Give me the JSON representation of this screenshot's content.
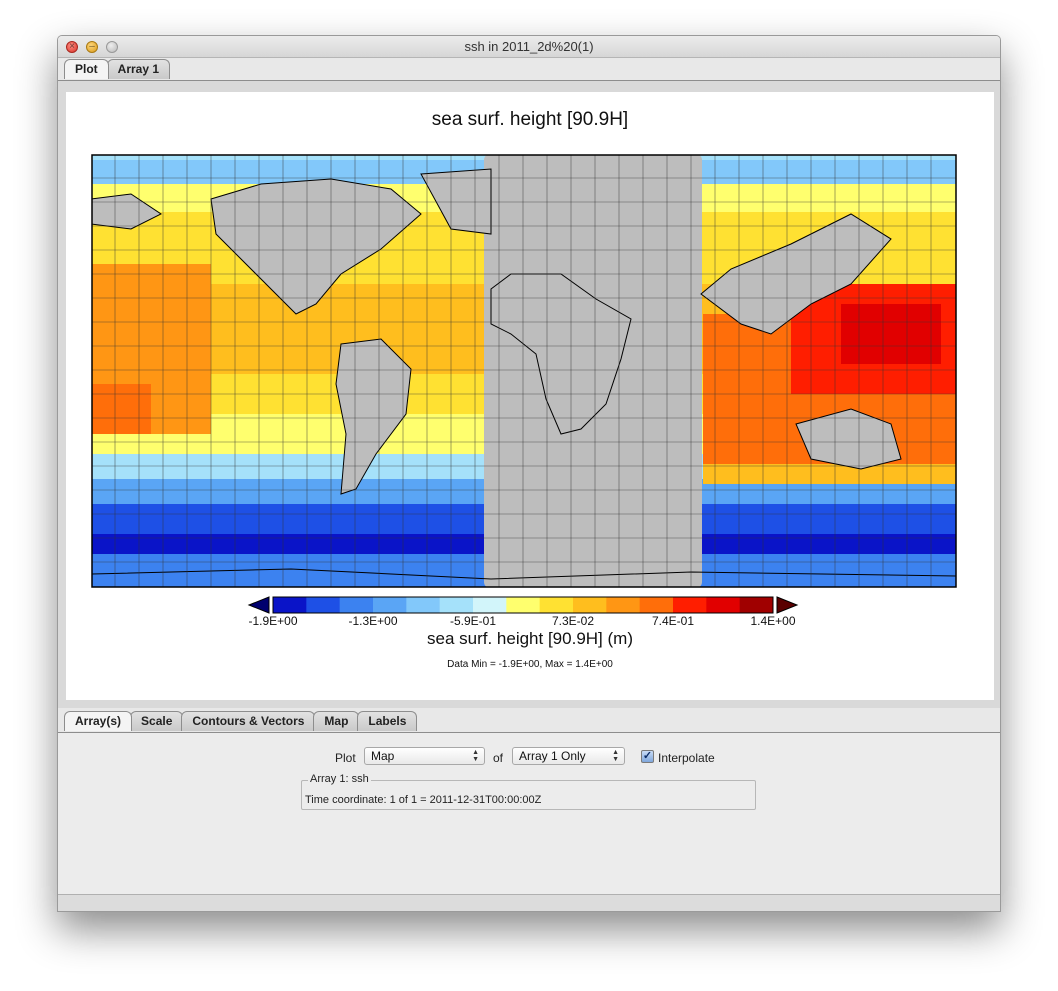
{
  "window": {
    "title": "ssh in 2011_2d%20(1)"
  },
  "top_tabs": [
    {
      "label": "Plot",
      "active": true
    },
    {
      "label": "Array 1",
      "active": false
    }
  ],
  "plot": {
    "title": "sea surf. height  [90.9H]",
    "colorbar_title": "sea surf. height  [90.9H] (m)",
    "colorbar_ticks": [
      "-1.9E+00",
      "-1.3E+00",
      "-5.9E-01",
      "7.3E-02",
      "7.4E-01",
      "1.4E+00"
    ],
    "data_range": "Data Min = -1.9E+00, Max = 1.4E+00",
    "colors": {
      "land": "#bdbdbd",
      "scale": [
        "#0a14c8",
        "#1e50e6",
        "#3c82f0",
        "#5aa5f5",
        "#82c8fa",
        "#a5e1fa",
        "#d2f5fa",
        "#ffff6e",
        "#ffe132",
        "#ffbe1e",
        "#ff9614",
        "#ff6e0a",
        "#ff1e00",
        "#e10000",
        "#a00000"
      ],
      "arrow_low": "#00006e",
      "arrow_high": "#5a0000"
    }
  },
  "chart_data": {
    "type": "heatmap",
    "title": "sea surf. height  [90.9H]",
    "variable": "sea surf. height [90.9H]",
    "units": "m",
    "colorbar": {
      "min": -1.9,
      "max": 1.4,
      "ticks": [
        -1.9,
        -1.3,
        -0.59,
        0.073,
        0.74,
        1.4
      ]
    },
    "data_min": -1.9,
    "data_max": 1.4,
    "grid": true,
    "projection": "equirectangular",
    "time": "2011-12-31T00:00:00Z"
  },
  "bottom_tabs": [
    {
      "label": "Array(s)",
      "active": true
    },
    {
      "label": "Scale",
      "active": false
    },
    {
      "label": "Contours & Vectors",
      "active": false
    },
    {
      "label": "Map",
      "active": false
    },
    {
      "label": "Labels",
      "active": false
    }
  ],
  "controls": {
    "plot_label": "Plot",
    "plot_type": "Map",
    "of_label": "of",
    "array_select": "Array 1 Only",
    "interpolate_label": "Interpolate",
    "interpolate_checked": true,
    "array_group_title": "Array 1: ssh",
    "time_coordinate": "Time coordinate: 1 of 1 = 2011-12-31T00:00:00Z"
  }
}
